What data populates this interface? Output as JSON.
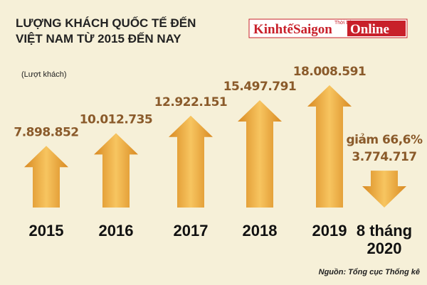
{
  "chart_data": {
    "type": "arrow-bar",
    "title": [
      "LƯỢNG KHÁCH QUỐC TẾ ĐẾN",
      "VIỆT NAM TỪ 2015 ĐẾN NAY"
    ],
    "unit_label": "(Lượt khách)",
    "categories": [
      "2015",
      "2016",
      "2017",
      "2018",
      "2019",
      "8 tháng 2020"
    ],
    "values": [
      7898852,
      10012735,
      12922151,
      15497791,
      18008591,
      3774717
    ],
    "value_labels": [
      "7.898.852",
      "10.012.735",
      "12.922.151",
      "15.497.791",
      "18.008.591",
      "3.774.717"
    ],
    "directions": [
      "up",
      "up",
      "up",
      "up",
      "up",
      "down"
    ],
    "annotation": "giảm 66,6%",
    "color": "#eba53c",
    "source": "Nguồn: Tổng cục Thống kê"
  },
  "brand": {
    "name": "KinhtếSaigon",
    "suffix": "Online",
    "tag": "Thời báo"
  }
}
